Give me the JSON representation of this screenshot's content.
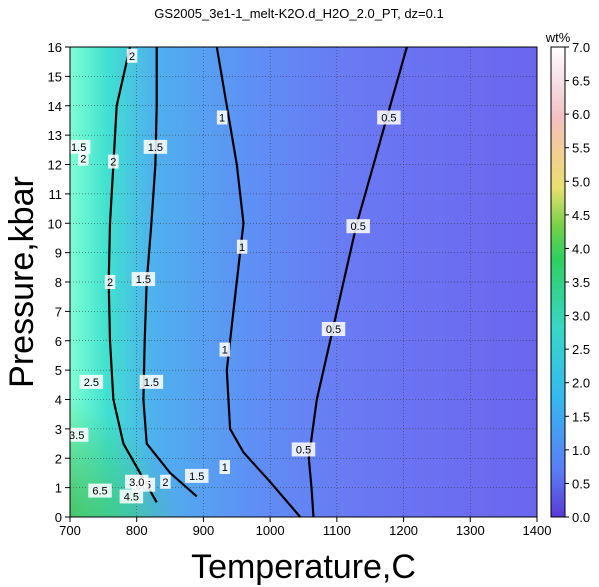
{
  "chart_data": {
    "type": "heatmap",
    "title": "GS2005_3e1-1_melt-K2O.d_H2O_2.0_PT, dz=0.1",
    "xlabel": "Temperature,C",
    "ylabel": "Pressure,kbar",
    "xlim": [
      700,
      1400
    ],
    "ylim": [
      0,
      16
    ],
    "x_ticks": [
      700,
      800,
      900,
      1000,
      1100,
      1200,
      1300,
      1400
    ],
    "y_ticks": [
      0,
      1,
      2,
      3,
      4,
      5,
      6,
      7,
      8,
      9,
      10,
      11,
      12,
      13,
      14,
      15,
      16
    ],
    "grid": true,
    "colorbar": {
      "label": "wt%",
      "range": [
        0.0,
        7.0
      ],
      "ticks": [
        "0.0",
        "0.5",
        "1.0",
        "1.5",
        "2.0",
        "2.5",
        "3.0",
        "3.5",
        "4.0",
        "4.5",
        "5.0",
        "5.5",
        "6.0",
        "6.5",
        "7.0"
      ]
    },
    "contours": [
      {
        "level": 0.5,
        "points": [
          [
            1065,
            0
          ],
          [
            1062,
            1
          ],
          [
            1058,
            2
          ],
          [
            1070,
            4
          ],
          [
            1090,
            6
          ],
          [
            1110,
            8
          ],
          [
            1130,
            10
          ],
          [
            1155,
            12
          ],
          [
            1180,
            14
          ],
          [
            1205,
            16
          ]
        ]
      },
      {
        "level": 1,
        "points": [
          [
            1045,
            0
          ],
          [
            1000,
            1.2
          ],
          [
            960,
            2.2
          ],
          [
            940,
            3
          ],
          [
            935,
            5
          ],
          [
            945,
            7
          ],
          [
            955,
            9
          ],
          [
            960,
            10
          ],
          [
            950,
            12
          ],
          [
            935,
            14
          ],
          [
            920,
            16
          ]
        ]
      },
      {
        "level": 1.5,
        "points": [
          [
            890,
            0.7
          ],
          [
            850,
            1.5
          ],
          [
            815,
            2.5
          ],
          [
            810,
            4
          ],
          [
            812,
            6
          ],
          [
            815,
            8
          ],
          [
            822,
            10
          ],
          [
            828,
            12
          ],
          [
            830,
            14
          ],
          [
            830,
            16
          ]
        ]
      },
      {
        "level": 2,
        "points": [
          [
            830,
            0.5
          ],
          [
            780,
            2.5
          ],
          [
            765,
            4
          ],
          [
            760,
            6
          ],
          [
            758,
            8
          ],
          [
            760,
            10
          ],
          [
            765,
            12
          ],
          [
            770,
            14
          ],
          [
            790,
            16
          ]
        ]
      }
    ],
    "contour_labels": [
      {
        "text": "0.5",
        "x": 1050,
        "y": 2.3
      },
      {
        "text": "0.5",
        "x": 1095,
        "y": 6.4
      },
      {
        "text": "0.5",
        "x": 1132,
        "y": 9.9
      },
      {
        "text": "0.5",
        "x": 1178,
        "y": 13.6
      },
      {
        "text": "1",
        "x": 932,
        "y": 1.7
      },
      {
        "text": "1",
        "x": 932,
        "y": 5.7
      },
      {
        "text": "1",
        "x": 958,
        "y": 9.2
      },
      {
        "text": "1",
        "x": 928,
        "y": 13.6
      },
      {
        "text": "1.5",
        "x": 890,
        "y": 1.4
      },
      {
        "text": "1.5",
        "x": 822,
        "y": 4.6
      },
      {
        "text": "1.5",
        "x": 810,
        "y": 8.1
      },
      {
        "text": "1.5",
        "x": 828,
        "y": 12.6
      },
      {
        "text": "2",
        "x": 843,
        "y": 1.2
      },
      {
        "text": "2",
        "x": 760,
        "y": 8.0
      },
      {
        "text": "2",
        "x": 765,
        "y": 12.1
      },
      {
        "text": "2",
        "x": 793,
        "y": 15.7
      },
      {
        "text": "1.5",
        "x": 713,
        "y": 12.6
      },
      {
        "text": "2",
        "x": 720,
        "y": 12.2
      },
      {
        "text": "2.5",
        "x": 732,
        "y": 4.6
      },
      {
        "text": "3.5",
        "x": 710,
        "y": 2.8
      },
      {
        "text": "2.5",
        "x": 810,
        "y": 1.1
      },
      {
        "text": "3.0",
        "x": 800,
        "y": 1.2
      },
      {
        "text": "4.5",
        "x": 792,
        "y": 0.7
      },
      {
        "text": "6.5",
        "x": 745,
        "y": 0.9
      }
    ]
  }
}
